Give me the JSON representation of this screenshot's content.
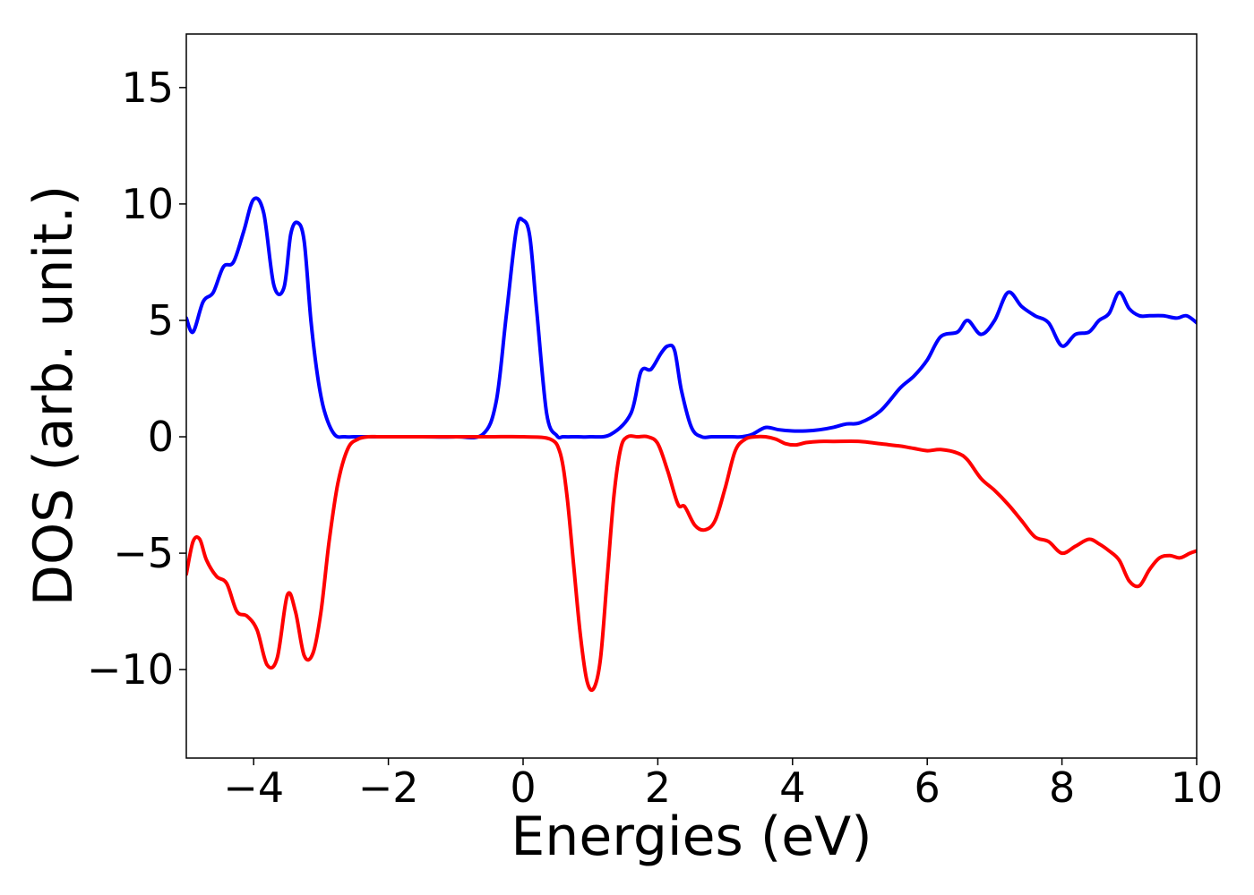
{
  "chart_data": {
    "type": "line",
    "title": "",
    "xlabel": "Energies (eV)",
    "ylabel": "DOS (arb. unit.)",
    "xlim": [
      -5,
      10
    ],
    "ylim": [
      -13.8,
      17.3
    ],
    "xticks": [
      -4,
      -2,
      0,
      2,
      4,
      6,
      8,
      10
    ],
    "xtick_labels": [
      "−4",
      "−2",
      "0",
      "2",
      "4",
      "6",
      "8",
      "10"
    ],
    "yticks": [
      -10,
      -5,
      0,
      5,
      10,
      15
    ],
    "ytick_labels": [
      "−10",
      "−5",
      "0",
      "5",
      "10",
      "15"
    ],
    "grid": false,
    "legend": "none",
    "series": [
      {
        "color": "#0000ff",
        "x": [
          -5.0,
          -4.9,
          -4.75,
          -4.6,
          -4.45,
          -4.3,
          -4.15,
          -4.0,
          -3.85,
          -3.7,
          -3.55,
          -3.45,
          -3.35,
          -3.25,
          -3.15,
          -3.05,
          -2.95,
          -2.8,
          -2.65,
          -2.5,
          -2.35,
          -2.2,
          -2.05,
          -1.9,
          -1.5,
          -1.0,
          -0.6,
          -0.4,
          -0.25,
          -0.1,
          0.0,
          0.1,
          0.2,
          0.35,
          0.5,
          0.6,
          0.8,
          1.0,
          1.3,
          1.6,
          1.75,
          1.9,
          2.05,
          2.15,
          2.25,
          2.35,
          2.5,
          2.65,
          2.8,
          2.95,
          3.1,
          3.25,
          3.4,
          3.6,
          3.8,
          4.0,
          4.2,
          4.4,
          4.6,
          4.8,
          5.0,
          5.3,
          5.6,
          5.8,
          6.0,
          6.2,
          6.45,
          6.6,
          6.8,
          7.0,
          7.2,
          7.4,
          7.6,
          7.8,
          8.0,
          8.2,
          8.4,
          8.55,
          8.7,
          8.85,
          9.0,
          9.15,
          9.3,
          9.5,
          9.7,
          9.85,
          10.0
        ],
        "y": [
          5.1,
          4.5,
          5.8,
          6.2,
          7.3,
          7.5,
          8.8,
          10.2,
          9.6,
          6.5,
          6.4,
          8.7,
          9.2,
          8.4,
          5.0,
          2.6,
          1.1,
          0.1,
          0.0,
          0.0,
          0.0,
          0.0,
          0.0,
          0.0,
          0.0,
          0.0,
          0.1,
          1.5,
          5.2,
          8.9,
          9.3,
          8.6,
          5.5,
          1.0,
          0.05,
          0.0,
          0.0,
          0.0,
          0.1,
          1.0,
          2.8,
          2.9,
          3.6,
          3.9,
          3.7,
          2.0,
          0.4,
          0.0,
          0.0,
          0.0,
          0.0,
          0.0,
          0.1,
          0.4,
          0.3,
          0.25,
          0.25,
          0.3,
          0.4,
          0.55,
          0.6,
          1.1,
          2.1,
          2.6,
          3.3,
          4.3,
          4.5,
          5.0,
          4.4,
          5.0,
          6.2,
          5.6,
          5.2,
          4.9,
          3.9,
          4.4,
          4.5,
          5.0,
          5.3,
          6.2,
          5.5,
          5.2,
          5.2,
          5.2,
          5.1,
          5.2,
          4.9
        ]
      },
      {
        "color": "#ff0000",
        "x": [
          -5.0,
          -4.9,
          -4.8,
          -4.7,
          -4.55,
          -4.4,
          -4.25,
          -4.1,
          -3.95,
          -3.8,
          -3.65,
          -3.5,
          -3.38,
          -3.25,
          -3.12,
          -3.0,
          -2.88,
          -2.75,
          -2.6,
          -2.45,
          -2.3,
          -2.15,
          -2.0,
          -1.9,
          -1.5,
          -1.0,
          -0.5,
          0.0,
          0.4,
          0.55,
          0.65,
          0.75,
          0.85,
          0.95,
          1.05,
          1.15,
          1.25,
          1.35,
          1.45,
          1.55,
          1.7,
          1.85,
          2.0,
          2.15,
          2.3,
          2.4,
          2.55,
          2.7,
          2.85,
          3.0,
          3.15,
          3.3,
          3.45,
          3.6,
          3.75,
          3.9,
          4.05,
          4.2,
          4.4,
          4.6,
          5.0,
          5.3,
          5.6,
          5.8,
          6.0,
          6.2,
          6.45,
          6.6,
          6.8,
          7.0,
          7.2,
          7.4,
          7.6,
          7.8,
          8.0,
          8.2,
          8.4,
          8.55,
          8.7,
          8.85,
          9.0,
          9.15,
          9.3,
          9.45,
          9.6,
          9.75,
          9.9,
          10.0
        ],
        "y": [
          -5.9,
          -4.5,
          -4.4,
          -5.3,
          -6.0,
          -6.3,
          -7.5,
          -7.7,
          -8.3,
          -9.8,
          -9.5,
          -6.8,
          -7.5,
          -9.4,
          -9.3,
          -7.5,
          -4.5,
          -2.0,
          -0.5,
          -0.1,
          0.0,
          0.0,
          0.0,
          0.0,
          0.0,
          0.0,
          0.0,
          0.0,
          -0.1,
          -0.7,
          -2.5,
          -5.5,
          -8.5,
          -10.5,
          -10.8,
          -9.5,
          -6.0,
          -2.5,
          -0.5,
          0.0,
          0.0,
          0.0,
          -0.3,
          -1.5,
          -2.9,
          -3.0,
          -3.8,
          -4.0,
          -3.6,
          -2.2,
          -0.6,
          -0.1,
          0.0,
          0.0,
          -0.1,
          -0.3,
          -0.35,
          -0.25,
          -0.2,
          -0.2,
          -0.2,
          -0.3,
          -0.4,
          -0.5,
          -0.6,
          -0.55,
          -0.7,
          -1.0,
          -1.8,
          -2.3,
          -2.9,
          -3.6,
          -4.3,
          -4.5,
          -5.0,
          -4.7,
          -4.4,
          -4.6,
          -4.9,
          -5.3,
          -6.2,
          -6.4,
          -5.7,
          -5.2,
          -5.1,
          -5.2,
          -5.0,
          -4.9
        ]
      }
    ]
  }
}
